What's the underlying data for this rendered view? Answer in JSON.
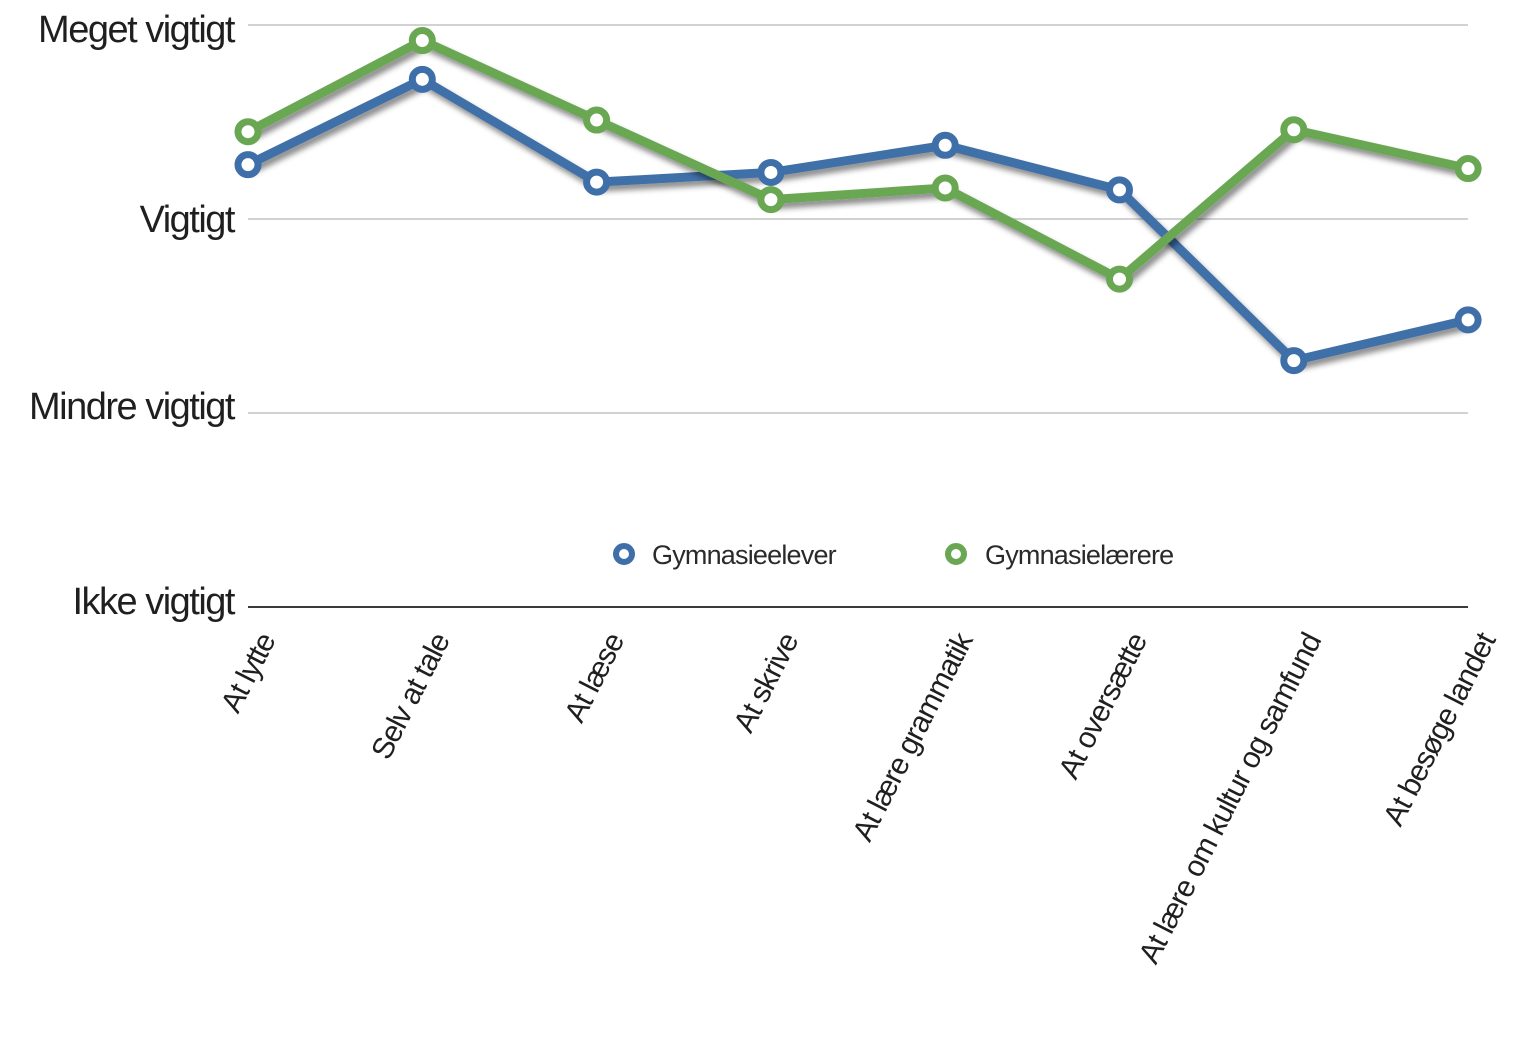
{
  "chart_data": {
    "type": "line",
    "y_ticks": [
      {
        "label": "Ikke vigtigt",
        "value": 0
      },
      {
        "label": "Mindre vigtigt",
        "value": 1
      },
      {
        "label": "Vigtigt",
        "value": 2
      },
      {
        "label": "Meget vigtigt",
        "value": 3
      }
    ],
    "ylim": [
      0,
      3
    ],
    "categories": [
      "At lytte",
      "Selv at tale",
      "At læse",
      "At skrive",
      "At lære grammatik",
      "At oversætte",
      "At lære om kultur og samfund",
      "At besøge landet"
    ],
    "series": [
      {
        "name": "Gymnasieelever",
        "color": "#3f6fa8",
        "values": [
          2.28,
          2.72,
          2.19,
          2.24,
          2.38,
          2.15,
          1.27,
          1.48
        ]
      },
      {
        "name": "Gymnasielærere",
        "color": "#6aa753",
        "values": [
          2.45,
          2.92,
          2.51,
          2.1,
          2.16,
          1.69,
          2.46,
          2.26
        ]
      }
    ],
    "grid": true,
    "legend_position": "inside-bottom-center",
    "title": "",
    "xlabel": "",
    "ylabel": ""
  }
}
